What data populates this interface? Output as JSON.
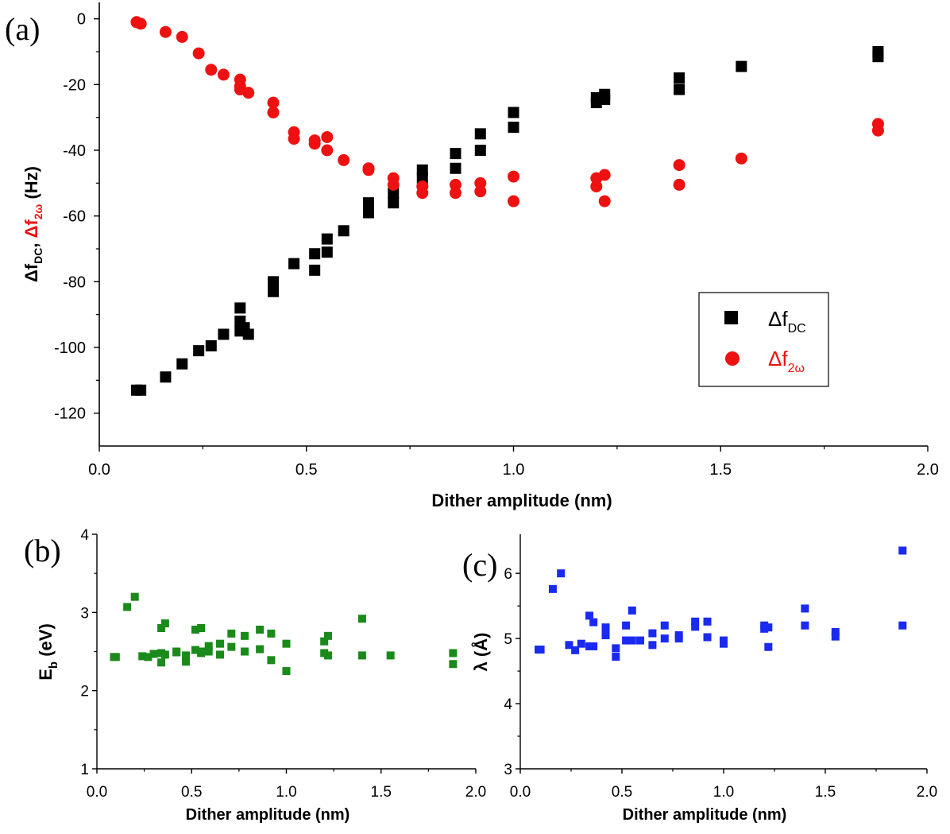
{
  "chart_data": [
    {
      "panel": "(a)",
      "type": "scatter",
      "xlabel": "Dither amplitude (nm)",
      "ylabel_parts": [
        "Δf",
        "DC",
        ", ",
        "Δf",
        "2ω",
        " (Hz)"
      ],
      "xlim": [
        0,
        2
      ],
      "ylim": [
        -130,
        5
      ],
      "xticks": [
        "0.0",
        "0.5",
        "1.0",
        "1.5",
        "2.0"
      ],
      "yticks": [
        "0",
        "-20",
        "-40",
        "-60",
        "-80",
        "-100",
        "-120"
      ],
      "legend": [
        {
          "symbol": "square",
          "base": "Δf",
          "sub": "DC",
          "color": "#000000"
        },
        {
          "symbol": "circle",
          "base": "Δf",
          "sub": "2ω",
          "color": "#ee1111"
        }
      ],
      "legend_position": "right",
      "series": [
        {
          "name": "ΔfDC",
          "marker": "square",
          "color": "#000000",
          "x": [
            0.09,
            0.1,
            0.16,
            0.2,
            0.24,
            0.27,
            0.3,
            0.34,
            0.34,
            0.34,
            0.35,
            0.36,
            0.42,
            0.42,
            0.47,
            0.52,
            0.52,
            0.55,
            0.55,
            0.59,
            0.65,
            0.65,
            0.71,
            0.71,
            0.78,
            0.78,
            0.86,
            0.86,
            0.92,
            0.92,
            1.0,
            1.0,
            1.2,
            1.2,
            1.22,
            1.22,
            1.4,
            1.4,
            1.55,
            1.88,
            1.88
          ],
          "y": [
            -113,
            -113,
            -109,
            -105,
            -101,
            -99.5,
            -96,
            -88,
            -92,
            -95,
            -94,
            -96,
            -80,
            -83,
            -74.5,
            -71.5,
            -76.5,
            -67,
            -71,
            -64.5,
            -56,
            -59,
            -53,
            -56,
            -46,
            -48.5,
            -41,
            -45.5,
            -35,
            -40,
            -28.5,
            -33,
            -24,
            -25.5,
            -23,
            -24.5,
            -18,
            -21.5,
            -14.5,
            -10,
            -11.5
          ]
        },
        {
          "name": "Δf2ω",
          "marker": "circle",
          "color": "#ee1111",
          "x": [
            0.09,
            0.1,
            0.16,
            0.2,
            0.24,
            0.27,
            0.3,
            0.34,
            0.34,
            0.34,
            0.36,
            0.42,
            0.42,
            0.47,
            0.47,
            0.52,
            0.52,
            0.55,
            0.55,
            0.59,
            0.65,
            0.65,
            0.71,
            0.71,
            0.78,
            0.78,
            0.86,
            0.86,
            0.92,
            0.92,
            1.0,
            1.0,
            1.2,
            1.2,
            1.22,
            1.22,
            1.4,
            1.4,
            1.55,
            1.88,
            1.88
          ],
          "y": [
            -1,
            -1.5,
            -4,
            -5.5,
            -10.5,
            -15.5,
            -17,
            -18.5,
            -20.5,
            -21.5,
            -22.5,
            -25.5,
            -28.5,
            -34.5,
            -36.5,
            -37,
            -38,
            -36,
            -40,
            -43,
            -45.5,
            -46,
            -48.5,
            -50.5,
            -51,
            -53,
            -50.5,
            -53,
            -50,
            -52.5,
            -48,
            -55.5,
            -48.5,
            -51,
            -47.5,
            -55.5,
            -44.5,
            -50.5,
            -42.5,
            -32,
            -34
          ]
        }
      ]
    },
    {
      "panel": "(b)",
      "type": "scatter",
      "xlabel": "Dither amplitude (nm)",
      "ylabel_parts": [
        "E",
        "b",
        " (eV)"
      ],
      "xlim": [
        0,
        2
      ],
      "ylim": [
        1,
        4
      ],
      "xticks": [
        "0.0",
        "0.5",
        "1.0",
        "1.5",
        "2.0"
      ],
      "yticks": [
        "1",
        "2",
        "3",
        "4"
      ],
      "series": [
        {
          "name": "Eb",
          "marker": "square",
          "color": "#1a8a1a",
          "x": [
            0.09,
            0.1,
            0.16,
            0.2,
            0.24,
            0.27,
            0.3,
            0.34,
            0.34,
            0.34,
            0.36,
            0.36,
            0.42,
            0.42,
            0.47,
            0.47,
            0.52,
            0.52,
            0.55,
            0.55,
            0.55,
            0.59,
            0.59,
            0.65,
            0.65,
            0.71,
            0.71,
            0.78,
            0.78,
            0.86,
            0.86,
            0.92,
            0.92,
            1.0,
            1.0,
            1.2,
            1.2,
            1.22,
            1.22,
            1.4,
            1.4,
            1.55,
            1.88,
            1.88
          ],
          "y": [
            2.43,
            2.43,
            3.07,
            3.2,
            2.44,
            2.43,
            2.47,
            2.36,
            2.48,
            2.8,
            2.86,
            2.46,
            2.5,
            2.49,
            2.45,
            2.37,
            2.78,
            2.52,
            2.5,
            2.8,
            2.48,
            2.57,
            2.5,
            2.6,
            2.46,
            2.73,
            2.56,
            2.7,
            2.5,
            2.78,
            2.53,
            2.73,
            2.39,
            2.6,
            2.25,
            2.63,
            2.48,
            2.7,
            2.45,
            2.92,
            2.45,
            2.45,
            2.48,
            2.34
          ]
        }
      ]
    },
    {
      "panel": "(c)",
      "type": "scatter",
      "xlabel": "Dither amplitude (nm)",
      "ylabel_parts": [
        "λ (Å)"
      ],
      "xlim": [
        0,
        2
      ],
      "ylim": [
        3,
        6.6
      ],
      "xticks": [
        "0.0",
        "0.5",
        "1.0",
        "1.5",
        "2.0"
      ],
      "yticks": [
        "3",
        "4",
        "5",
        "6"
      ],
      "series": [
        {
          "name": "λ",
          "marker": "square",
          "color": "#1a2af0",
          "x": [
            0.09,
            0.1,
            0.16,
            0.2,
            0.24,
            0.27,
            0.3,
            0.34,
            0.34,
            0.36,
            0.36,
            0.42,
            0.42,
            0.47,
            0.47,
            0.52,
            0.52,
            0.55,
            0.55,
            0.59,
            0.65,
            0.65,
            0.71,
            0.71,
            0.78,
            0.78,
            0.86,
            0.86,
            0.92,
            0.92,
            1.0,
            1.0,
            1.2,
            1.2,
            1.22,
            1.22,
            1.4,
            1.4,
            1.55,
            1.55,
            1.88,
            1.88
          ],
          "y": [
            4.83,
            4.83,
            5.76,
            6.0,
            4.9,
            4.82,
            4.92,
            4.88,
            5.35,
            5.25,
            4.88,
            5.17,
            5.05,
            4.85,
            4.72,
            5.2,
            4.97,
            5.43,
            4.97,
            4.97,
            4.9,
            5.08,
            5.2,
            5.0,
            5.0,
            5.05,
            5.26,
            5.18,
            5.26,
            5.02,
            4.97,
            4.92,
            5.2,
            5.15,
            5.17,
            4.87,
            5.46,
            5.2,
            5.1,
            5.03,
            6.35,
            5.2
          ]
        }
      ]
    }
  ]
}
